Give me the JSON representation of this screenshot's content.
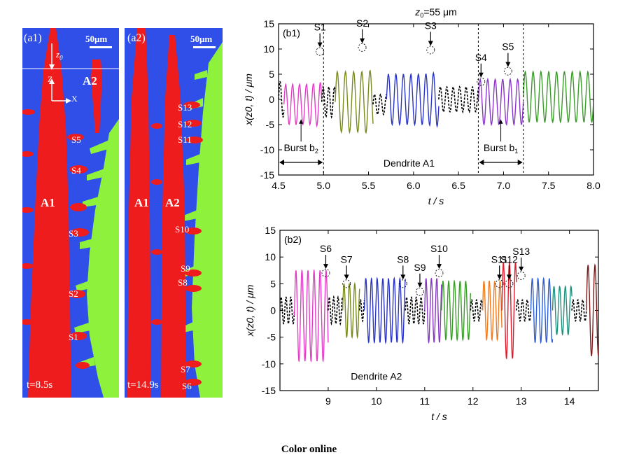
{
  "micrographs": {
    "a1": {
      "label": "(a1)",
      "scale_label": "50μm",
      "axis_z0": "z",
      "axis_z0_sub": "0",
      "axis_z": "Z",
      "axis_x": "X",
      "dendrite_labels": [
        "A1",
        "A2"
      ],
      "side_branch_labels": [
        "S5",
        "S4",
        "S3",
        "S2",
        "S1"
      ],
      "time_label": "t=8.5s"
    },
    "a2": {
      "label": "(a2)",
      "scale_label": "50μm",
      "dendrite_labels": [
        "A1",
        "A2"
      ],
      "side_branch_labels": [
        "S13",
        "S12",
        "S11",
        "S10",
        "S9",
        "S8",
        "S7",
        "S6"
      ],
      "time_label": "t=14.9s"
    },
    "colors": {
      "liquid": "#2f4fe8",
      "dendrite": "#ee1c1c",
      "neighbor": "#8ef23c"
    }
  },
  "chart_data": [
    {
      "type": "line",
      "panel_label": "(b1)",
      "title": "z0=55 μm",
      "title_z": "z",
      "title_sub": "0",
      "title_rest": "=55 μm",
      "xlabel": "t / s",
      "ylabel": "x(z0, t) / μm",
      "xlim": [
        4.5,
        8.0
      ],
      "ylim": [
        -15,
        15
      ],
      "xticks": [
        "4.5",
        "5.0",
        "5.5",
        "6.0",
        "6.5",
        "7.0",
        "7.5",
        "8.0"
      ],
      "yticks": [
        "-15",
        "-10",
        "-5",
        "0",
        "5",
        "10",
        "15"
      ],
      "annotation": "Dendrite A1",
      "bursts": [
        {
          "label": "Burst b",
          "sub": "2",
          "range": [
            4.5,
            5.0
          ]
        },
        {
          "label": "Burst b",
          "sub": "1",
          "range": [
            6.72,
            7.22
          ]
        }
      ],
      "markers": [
        {
          "label": "S1",
          "t": 4.96,
          "x": 9.5
        },
        {
          "label": "S2",
          "t": 5.43,
          "x": 10.3
        },
        {
          "label": "S3",
          "t": 6.19,
          "x": 9.8
        },
        {
          "label": "S4",
          "t": 6.75,
          "x": 3.5
        },
        {
          "label": "S5",
          "t": 7.05,
          "x": 5.6
        }
      ],
      "series": [
        {
          "color": "#000000",
          "dashed": true,
          "t0": 4.5,
          "t1": 4.56,
          "amp": 3.5,
          "freq": 15.0,
          "offset": 0.0,
          "trend": 0
        },
        {
          "color": "#e23ec6",
          "t0": 4.56,
          "t1": 4.98,
          "amp": 4.0,
          "freq": 13.0,
          "offset": -1.0,
          "trend": 6
        },
        {
          "color": "#000000",
          "dashed": true,
          "t0": 4.98,
          "t1": 5.13,
          "amp": 3.0,
          "freq": 16.0,
          "offset": -0.5,
          "trend": 0
        },
        {
          "color": "#7b8a1e",
          "t0": 5.13,
          "t1": 5.55,
          "amp": 6.0,
          "freq": 11.0,
          "offset": -0.5,
          "trend": 3
        },
        {
          "color": "#000000",
          "dashed": true,
          "t0": 5.55,
          "t1": 5.7,
          "amp": 2.0,
          "freq": 15.0,
          "offset": -1.0,
          "trend": 0
        },
        {
          "color": "#2b35c4",
          "t0": 5.7,
          "t1": 6.28,
          "amp": 5.0,
          "freq": 12.0,
          "offset": 0.0,
          "trend": 4
        },
        {
          "color": "#000000",
          "dashed": true,
          "t0": 6.28,
          "t1": 6.72,
          "amp": 2.5,
          "freq": 14.0,
          "offset": 0.0,
          "trend": 0
        },
        {
          "color": "#8a36c8",
          "t0": 6.72,
          "t1": 7.22,
          "amp": 4.5,
          "freq": 12.0,
          "offset": -0.5,
          "trend": 0
        },
        {
          "color": "#3a9b2a",
          "t0": 7.22,
          "t1": 8.0,
          "amp": 5.0,
          "freq": 11.5,
          "offset": 0.5,
          "trend": 0
        }
      ]
    },
    {
      "type": "line",
      "panel_label": "(b2)",
      "xlabel": "t / s",
      "ylabel": "x(z0, t) / μm",
      "xlim": [
        8.0,
        14.6
      ],
      "ylim": [
        -15,
        15
      ],
      "xticks": [
        "9",
        "10",
        "11",
        "12",
        "13",
        "14"
      ],
      "yticks": [
        "-15",
        "-10",
        "-5",
        "0",
        "5",
        "10",
        "15"
      ],
      "annotation": "Dendrite A2",
      "markers": [
        {
          "label": "S6",
          "t": 8.95,
          "x": 7.0
        },
        {
          "label": "S7",
          "t": 9.38,
          "x": 5.0
        },
        {
          "label": "S8",
          "t": 10.55,
          "x": 5.0
        },
        {
          "label": "S9",
          "t": 10.9,
          "x": 3.5
        },
        {
          "label": "S10",
          "t": 11.3,
          "x": 7.0
        },
        {
          "label": "S11",
          "t": 12.55,
          "x": 5.0
        },
        {
          "label": "S12",
          "t": 12.75,
          "x": 5.0
        },
        {
          "label": "S13",
          "t": 13.0,
          "x": 6.5
        }
      ],
      "series": [
        {
          "color": "#000000",
          "dashed": true,
          "t0": 8.0,
          "t1": 8.3,
          "amp": 2.5,
          "freq": 10.0,
          "offset": 0.0,
          "trend": 0
        },
        {
          "color": "#e23ec6",
          "t0": 8.3,
          "t1": 9.0,
          "amp": 8.5,
          "freq": 8.0,
          "offset": -1.0,
          "trend": 0
        },
        {
          "color": "#000000",
          "dashed": true,
          "t0": 9.0,
          "t1": 9.3,
          "amp": 2.5,
          "freq": 11.0,
          "offset": 0.0,
          "trend": 0
        },
        {
          "color": "#7b8a1e",
          "t0": 9.3,
          "t1": 9.65,
          "amp": 5.0,
          "freq": 9.0,
          "offset": 0.0,
          "trend": 0
        },
        {
          "color": "#000000",
          "dashed": true,
          "t0": 9.65,
          "t1": 9.75,
          "amp": 2.0,
          "freq": 12.0,
          "offset": 0.0,
          "trend": 0
        },
        {
          "color": "#2b35c4",
          "t0": 9.75,
          "t1": 10.6,
          "amp": 6.0,
          "freq": 8.5,
          "offset": 0.0,
          "trend": 0
        },
        {
          "color": "#000000",
          "dashed": true,
          "t0": 10.6,
          "t1": 11.0,
          "amp": 2.5,
          "freq": 10.0,
          "offset": 0.0,
          "trend": 0
        },
        {
          "color": "#8a36c8",
          "t0": 11.0,
          "t1": 11.35,
          "amp": 6.0,
          "freq": 9.0,
          "offset": 0.0,
          "trend": 0
        },
        {
          "color": "#3a9b2a",
          "t0": 11.35,
          "t1": 11.95,
          "amp": 5.5,
          "freq": 8.5,
          "offset": 0.0,
          "trend": 0
        },
        {
          "color": "#000000",
          "dashed": true,
          "t0": 11.95,
          "t1": 12.2,
          "amp": 2.0,
          "freq": 10.0,
          "offset": 0.0,
          "trend": 0
        },
        {
          "color": "#f07a1e",
          "t0": 12.2,
          "t1": 12.6,
          "amp": 5.5,
          "freq": 9.0,
          "offset": 0.0,
          "trend": 0
        },
        {
          "color": "#e01c2c",
          "t0": 12.6,
          "t1": 12.9,
          "amp": 9.0,
          "freq": 8.0,
          "offset": 0.0,
          "trend": 0
        },
        {
          "color": "#000000",
          "dashed": true,
          "t0": 12.9,
          "t1": 13.2,
          "amp": 2.0,
          "freq": 10.0,
          "offset": 0.0,
          "trend": 0
        },
        {
          "color": "#2b5fd8",
          "t0": 13.2,
          "t1": 13.65,
          "amp": 6.0,
          "freq": 8.5,
          "offset": 0.0,
          "trend": 0
        },
        {
          "color": "#1f8f7a",
          "t0": 13.65,
          "t1": 14.05,
          "amp": 4.5,
          "freq": 8.5,
          "offset": 0.0,
          "trend": 0
        },
        {
          "color": "#000000",
          "dashed": true,
          "t0": 14.05,
          "t1": 14.35,
          "amp": 2.0,
          "freq": 10.0,
          "offset": 0.0,
          "trend": 0
        },
        {
          "color": "#7a1a1a",
          "t0": 14.35,
          "t1": 14.6,
          "amp": 8.5,
          "freq": 7.0,
          "offset": 0.0,
          "trend": 0
        }
      ]
    }
  ],
  "caption": "Color online"
}
